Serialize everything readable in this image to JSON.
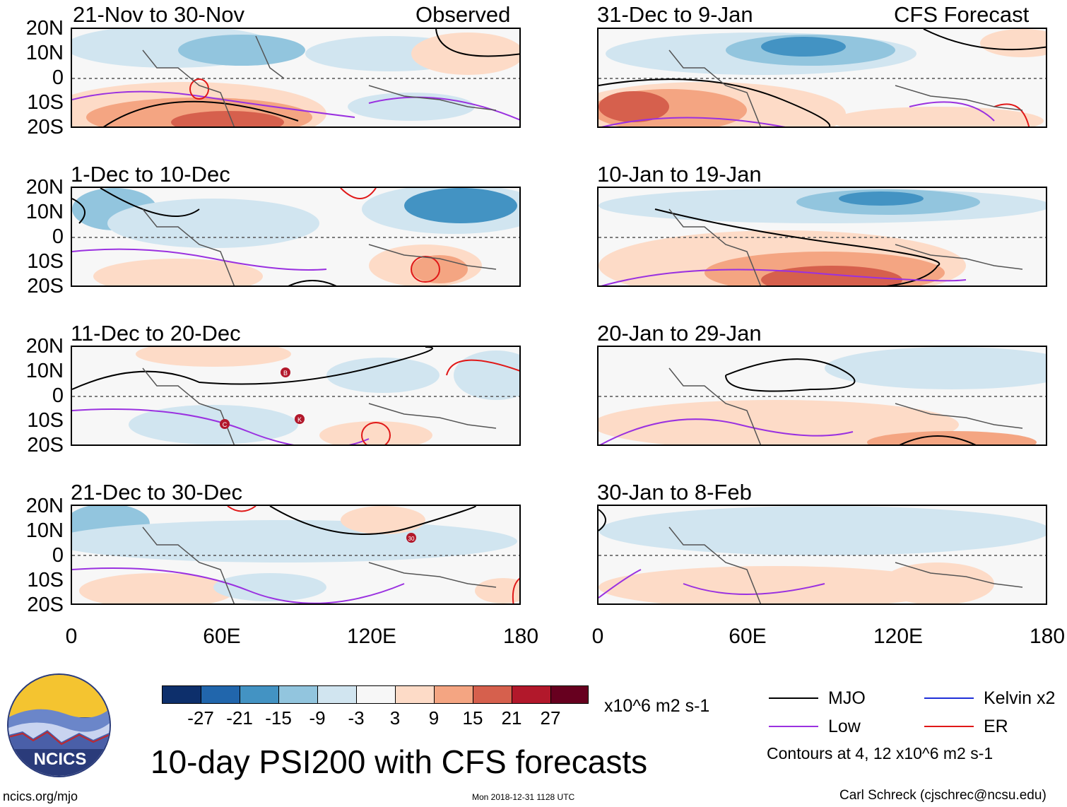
{
  "main_title": "10-day PSI200 with CFS forecasts",
  "labels": {
    "observed": "Observed",
    "forecast": "CFS Forecast",
    "lat_ticks": [
      "20N",
      "10N",
      "0",
      "10S",
      "20S"
    ],
    "lon_ticks": [
      "0",
      "60E",
      "120E",
      "180"
    ]
  },
  "left_panels": [
    "21-Nov to 30-Nov",
    "1-Dec to 10-Dec",
    "11-Dec to 20-Dec",
    "21-Dec to 30-Dec"
  ],
  "right_panels": [
    "31-Dec to 9-Jan",
    "10-Jan to 19-Jan",
    "20-Jan to 29-Jan",
    "30-Jan to 8-Feb"
  ],
  "colorbar": {
    "colors": [
      "#0d2f6b",
      "#2166ac",
      "#4393c3",
      "#92c5de",
      "#d1e5f0",
      "#f7f7f7",
      "#fddbc7",
      "#f4a582",
      "#d6604d",
      "#b2182b",
      "#67001f"
    ],
    "labels": [
      "-27",
      "-21",
      "-15",
      "-9",
      "-3",
      "3",
      "9",
      "15",
      "21",
      "27"
    ],
    "units": "x10^6 m2 s-1"
  },
  "legend": {
    "items": [
      {
        "label": "MJO",
        "color": "#000000"
      },
      {
        "label": "Kelvin x2",
        "color": "#1f2fd8"
      },
      {
        "label": "Low",
        "color": "#9a31e0"
      },
      {
        "label": "ER",
        "color": "#e01818"
      }
    ],
    "contours": "Contours at 4, 12 x10^6 m2 s-1"
  },
  "storm_markers": [
    "B",
    "C",
    "K",
    "30"
  ],
  "logo_text": "NCICS",
  "footer": {
    "left": "ncics.org/mjo",
    "center": "Mon 2018-12-31 1128 UTC",
    "right": "Carl Schreck (cjschrec@ncsu.edu)"
  }
}
